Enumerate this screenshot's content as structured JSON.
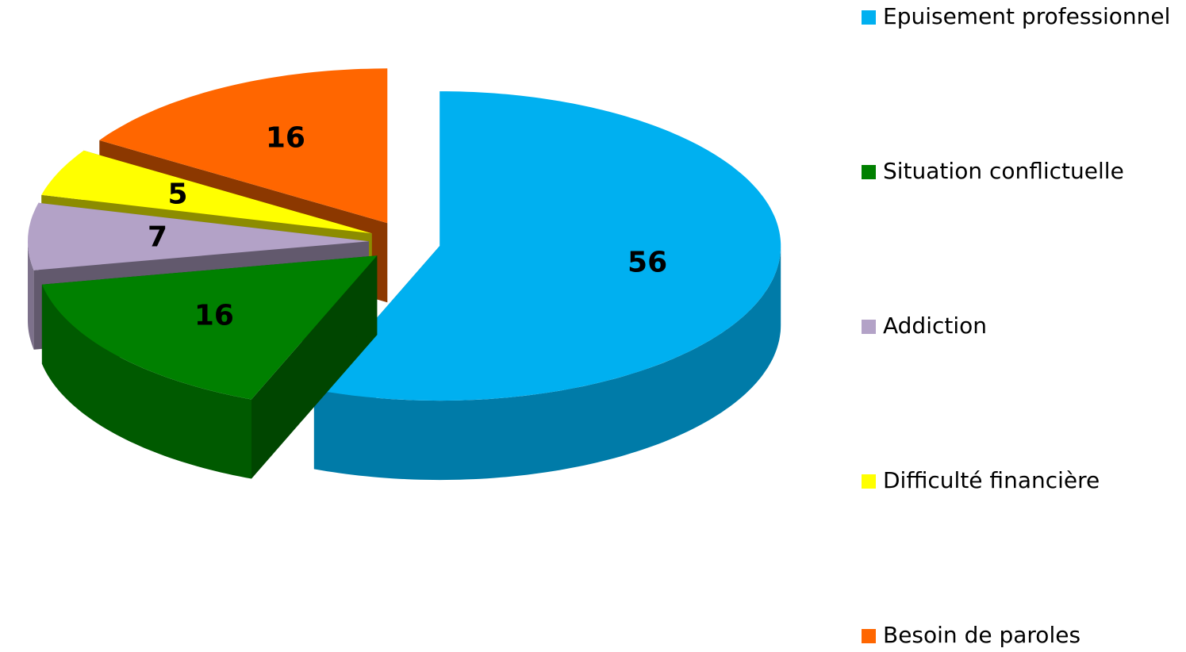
{
  "chart_data": {
    "type": "pie",
    "categories": [
      "Epuisement professionnel",
      "Situation conflictuelle",
      "Addiction",
      "Difficulté financière",
      "Besoin de paroles"
    ],
    "values": [
      56,
      16,
      7,
      5,
      16
    ],
    "colors": [
      "#00b0f0",
      "#008000",
      "#b3a2c7",
      "#ffff00",
      "#ff6600"
    ],
    "legend": "right"
  }
}
